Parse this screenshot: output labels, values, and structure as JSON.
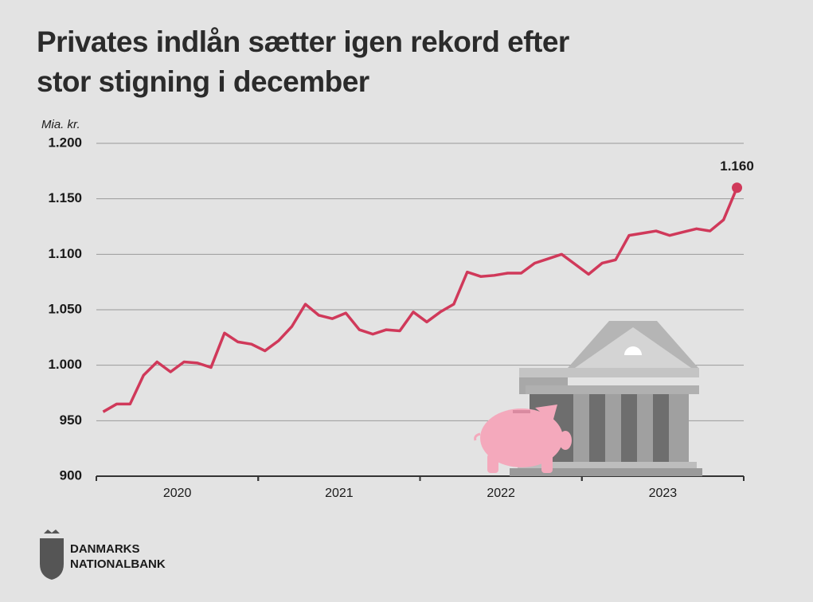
{
  "chart_data": {
    "type": "line",
    "title": "Privates indlån sætter igen rekord efter stor stigning i december",
    "y_label": "Mia. kr.",
    "categories": [
      null,
      null,
      null,
      null,
      null,
      null,
      "2020",
      null,
      null,
      null,
      null,
      null,
      null,
      null,
      null,
      null,
      null,
      null,
      "2021",
      null,
      null,
      null,
      null,
      null,
      null,
      null,
      null,
      null,
      null,
      null,
      "2022",
      null,
      null,
      null,
      null,
      null,
      null,
      null,
      null,
      null,
      null,
      null,
      "2023",
      null,
      null,
      null,
      null,
      null
    ],
    "values": [
      958,
      965,
      965,
      991,
      1003,
      994,
      1003,
      1002,
      998,
      1029,
      1021,
      1019,
      1013,
      1022,
      1035,
      1055,
      1045,
      1042,
      1047,
      1032,
      1028,
      1032,
      1031,
      1048,
      1039,
      1048,
      1055,
      1084,
      1080,
      1081,
      1083,
      1083,
      1092,
      1096,
      1100,
      1091,
      1082,
      1092,
      1095,
      1117,
      1119,
      1121,
      1117,
      1120,
      1123,
      1121,
      1131,
      1160
    ],
    "value_labels": [
      null,
      null,
      null,
      null,
      null,
      null,
      null,
      null,
      null,
      null,
      null,
      null,
      null,
      null,
      null,
      null,
      null,
      null,
      null,
      null,
      null,
      null,
      null,
      null,
      null,
      null,
      null,
      null,
      null,
      null,
      null,
      null,
      null,
      null,
      null,
      null,
      null,
      null,
      null,
      null,
      null,
      null,
      null,
      null,
      null,
      null,
      null,
      "1.160"
    ],
    "color": "#d0395a",
    "label_color": "#c00000",
    "ylim": [
      900,
      1200
    ],
    "yticks": [
      900,
      950,
      {
        "value": 1000,
        "label": "1.000"
      },
      {
        "value": 1050,
        "label": "1.050"
      },
      {
        "value": 1100,
        "label": "1.100"
      },
      {
        "value": 1150,
        "label": "1.150"
      },
      {
        "value": 1200,
        "label": "1.200"
      }
    ],
    "grid": true
  },
  "logo": [
    "DANMARKS",
    "NATIONALBANK"
  ]
}
